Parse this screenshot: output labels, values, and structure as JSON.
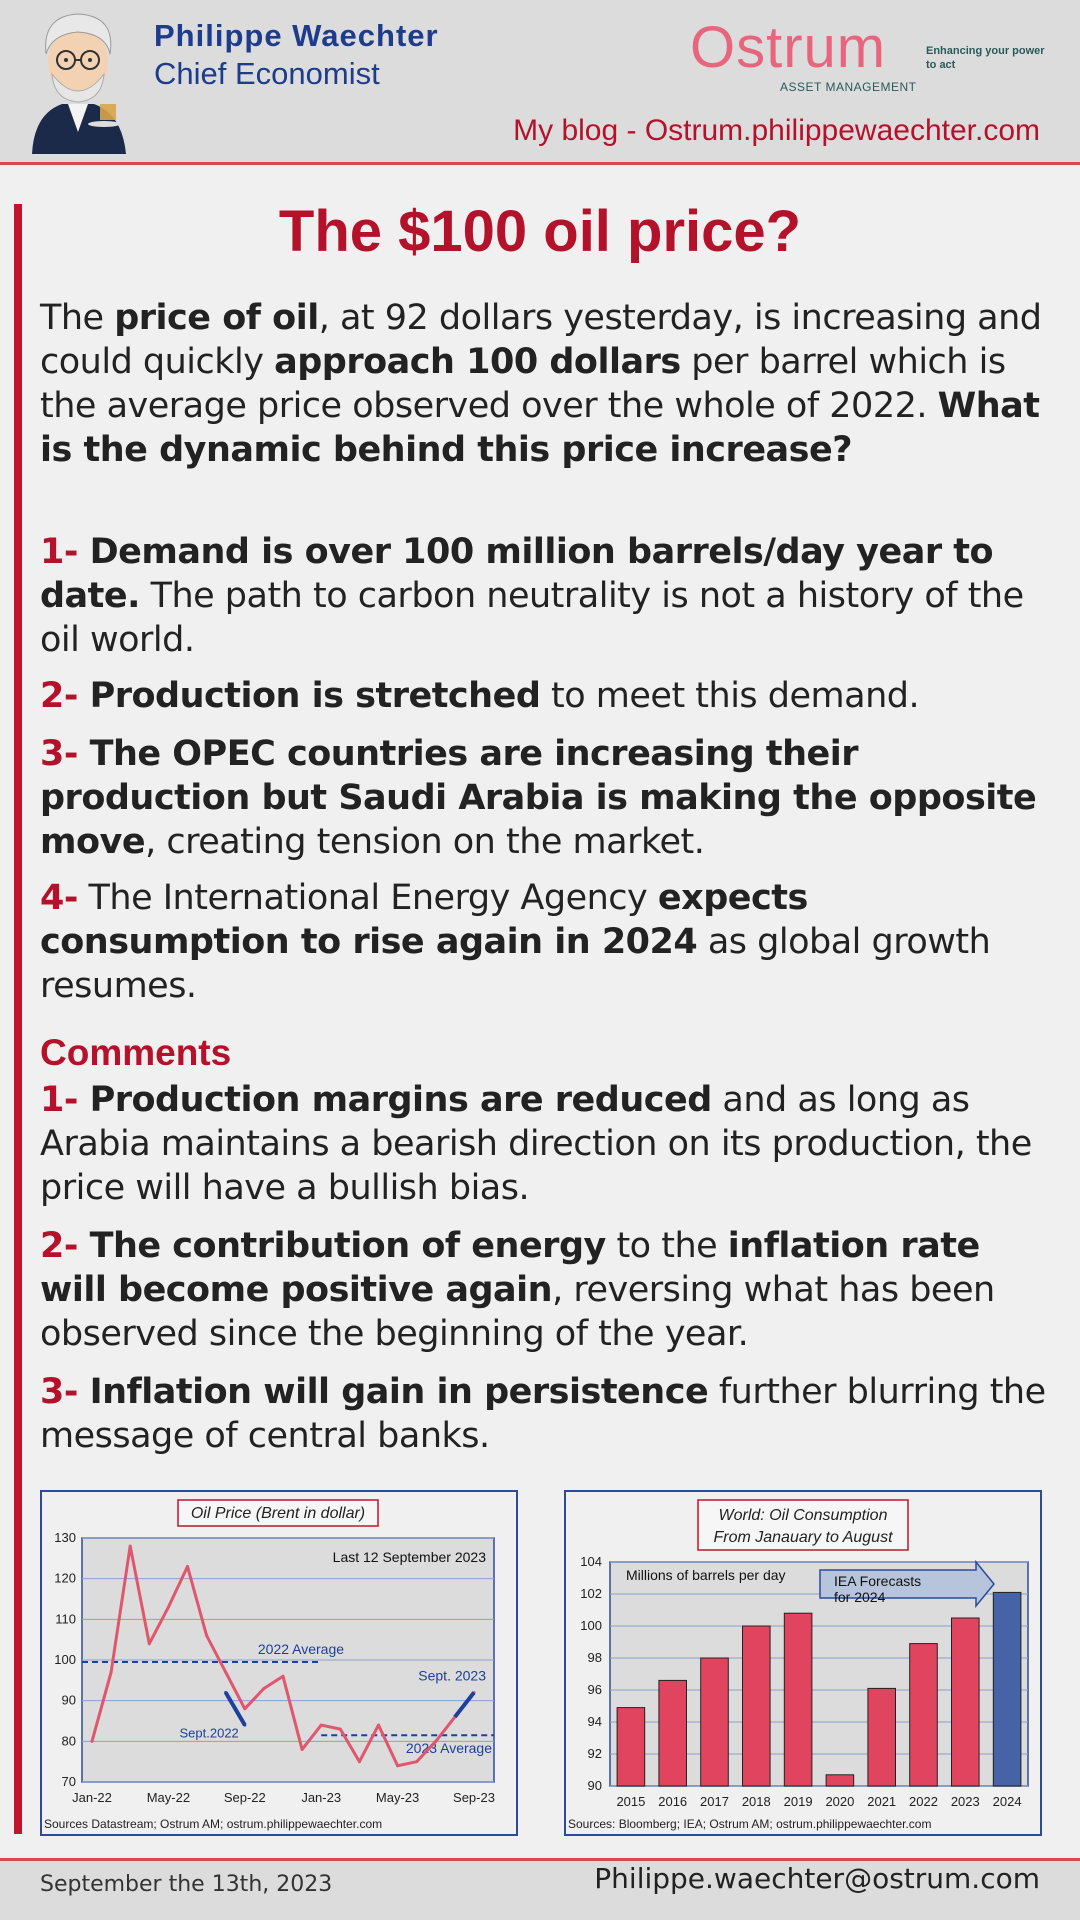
{
  "header": {
    "name": "Philippe  Waechter",
    "role": "Chief Economist",
    "logo_word": "Ostrum",
    "logo_sub": "ASSET MANAGEMENT",
    "logo_tagline": "Enhancing your power to act",
    "blog": "My blog - Ostrum.philippewaechter.com"
  },
  "title": "The $100 oil price?",
  "intro": {
    "t1": "The ",
    "b1": "price of oil",
    "t2": ", at 92 dollars yesterday, is increasing and could quickly ",
    "b2": "approach 100 dollars",
    "t3": " per barrel which is the average price observed over the whole of 2022. ",
    "b3": "What is the dynamic behind this price increase?"
  },
  "points": [
    {
      "num": "1-",
      "b1": " Demand is over 100 million barrels/day year to date.",
      "t1": " The path to carbon neutrality is not a history of the oil world."
    },
    {
      "num": "2-",
      "b1": " Production is stretched",
      "t1": " to meet this demand."
    },
    {
      "num": "3-",
      "b1": " The OPEC countries are increasing their production but Saudi Arabia is making the opposite move",
      "t1": ", creating tension on the market."
    },
    {
      "num": "4-",
      "t0": " The International Energy Agency ",
      "b1": "expects consumption to rise again in 2024",
      "t1": " as global growth resumes."
    }
  ],
  "comments_heading": "Comments",
  "comments": [
    {
      "num": "1-",
      "b1": " Production margins are reduced",
      "t1": " and as long as Arabia maintains a bearish direction on its production, the price will have a bullish bias."
    },
    {
      "num": "2-",
      "b1": " The contribution of energy",
      "t1": " to the ",
      "b2": "inflation rate will become positive again",
      "t2": ", reversing what has been observed since the beginning of the year."
    },
    {
      "num": "3-",
      "b1": " Inflation will gain in persistence",
      "t1": " further blurring the message of central banks."
    }
  ],
  "chart_data": [
    {
      "type": "line",
      "title": "Oil Price (Brent in dollar)",
      "subtitle": "Last 12 September 2023",
      "ylim": [
        70,
        130
      ],
      "yticks": [
        70,
        80,
        90,
        100,
        110,
        120,
        130
      ],
      "xticks": [
        "Jan-22",
        "May-22",
        "Sep-22",
        "Jan-23",
        "May-23",
        "Sep-23"
      ],
      "grid": true,
      "series": [
        {
          "color": "#e0566c",
          "x": [
            "Jan-22",
            "Feb-22",
            "Mar-22",
            "Apr-22",
            "May-22",
            "Jun-22",
            "Jul-22",
            "Aug-22",
            "Sep-22",
            "Oct-22",
            "Nov-22",
            "Dec-22",
            "Jan-23",
            "Feb-23",
            "Mar-23",
            "Apr-23",
            "May-23",
            "Jun-23",
            "Jul-23",
            "Aug-23",
            "Sep-23"
          ],
          "values": [
            80,
            97,
            128,
            104,
            113,
            123,
            106,
            97,
            88,
            93,
            96,
            78,
            84,
            83,
            75,
            84,
            74,
            75,
            80,
            86,
            92
          ]
        },
        {
          "color": "#1e3f9a",
          "x": [
            "Aug-22",
            "Sep-22"
          ],
          "values": [
            92,
            84
          ]
        }
      ],
      "reference_lines": [
        {
          "label": "2022 Average",
          "value": 99.5
        },
        {
          "label": "2023 Average",
          "value": 81.5
        }
      ],
      "annotations": [
        "Sept.2022",
        "Sept. 2023"
      ],
      "source": "Sources Datastream; Ostrum AM; ostrum.philippewaechter.com"
    },
    {
      "type": "bar",
      "title": "World: Oil Consumption",
      "title2": "From Janauary to August",
      "ylabel": "Millions of barrels per day",
      "ylim": [
        90,
        104
      ],
      "yticks": [
        90,
        92,
        94,
        96,
        98,
        100,
        102,
        104
      ],
      "categories": [
        "2015",
        "2016",
        "2017",
        "2018",
        "2019",
        "2020",
        "2021",
        "2022",
        "2023",
        "2024"
      ],
      "values": [
        94.9,
        96.6,
        98.0,
        100.0,
        100.8,
        90.7,
        96.1,
        98.9,
        100.5,
        102.1
      ],
      "colors": [
        "#e0445e",
        "#e0445e",
        "#e0445e",
        "#e0445e",
        "#e0445e",
        "#e0445e",
        "#e0445e",
        "#e0445e",
        "#e0445e",
        "#4663a8"
      ],
      "annotation": "IEA Forecasts for 2024",
      "annotation_lines": [
        "IEA Forecasts",
        "for 2024"
      ],
      "grid": true,
      "source": "Sources: Bloomberg; IEA; Ostrum AM; ostrum.philippewaechter.com"
    }
  ],
  "footer": {
    "date": "September the 13th, 2023",
    "email": "Philippe.waechter@ostrum.com"
  }
}
